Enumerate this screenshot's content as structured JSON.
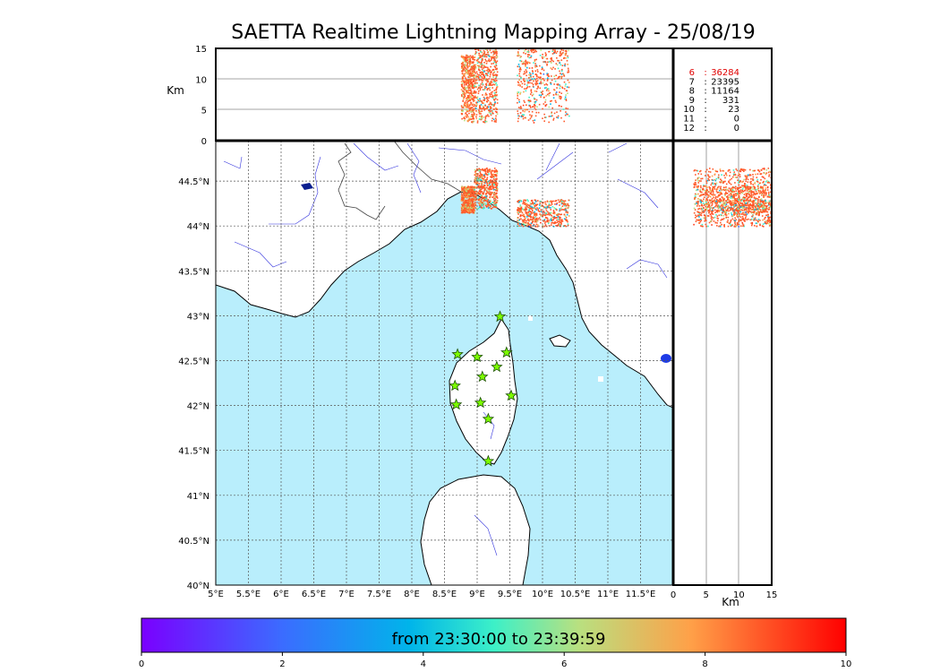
{
  "title": "SAETTA Realtime Lightning Mapping Array - 25/08/19",
  "altitude_axis_label": "Km",
  "altitude_ticks": [
    "0",
    "5",
    "10",
    "15"
  ],
  "bottom_km_label": "Km",
  "bottom_km_ticks": [
    "0",
    "5",
    "10",
    "15"
  ],
  "lon_ticks": [
    "5°E",
    "5.5°E",
    "6°E",
    "6.5°E",
    "7°E",
    "7.5°E",
    "8°E",
    "8.5°E",
    "9°E",
    "9.5°E",
    "10°E",
    "10.5°E",
    "11°E",
    "11.5°E"
  ],
  "lat_ticks": [
    "40°N",
    "40.5°N",
    "41°N",
    "41.5°N",
    "42°N",
    "42.5°N",
    "43°N",
    "43.5°N",
    "44°N",
    "44.5°N"
  ],
  "station_counts": [
    {
      "n": "6",
      "count": "36284",
      "highlight": true
    },
    {
      "n": "7",
      "count": "23395",
      "highlight": false
    },
    {
      "n": "8",
      "count": "11164",
      "highlight": false
    },
    {
      "n": "9",
      "count": "331",
      "highlight": false
    },
    {
      "n": "10",
      "count": "23",
      "highlight": false
    },
    {
      "n": "11",
      "count": "0",
      "highlight": false
    },
    {
      "n": "12",
      "count": "0",
      "highlight": false
    }
  ],
  "colorbar": {
    "caption": "from 23:30:00 to 23:39:59",
    "ticks": [
      "0",
      "2",
      "4",
      "6",
      "8",
      "10"
    ]
  },
  "colors": {
    "sea": "#b9eefc",
    "land": "#ffffff",
    "rivers": "#3333dd",
    "stations": "#7cfc00",
    "highlight": "#e00000"
  },
  "chart_data": {
    "type": "scatter",
    "title": "SAETTA Realtime Lightning Mapping Array - 25/08/19",
    "xlim": [
      5,
      12
    ],
    "ylim": [
      40,
      44.95
    ],
    "altitude_km_range": [
      0,
      15
    ],
    "color_scale": {
      "min": 0,
      "max": 10,
      "caption": "from 23:30:00 to 23:39:59"
    },
    "stations": [
      {
        "lon": 9.35,
        "lat": 42.99
      },
      {
        "lon": 8.7,
        "lat": 42.57
      },
      {
        "lon": 9.0,
        "lat": 42.54
      },
      {
        "lon": 9.45,
        "lat": 42.59
      },
      {
        "lon": 9.3,
        "lat": 42.43
      },
      {
        "lon": 9.08,
        "lat": 42.32
      },
      {
        "lon": 8.66,
        "lat": 42.22
      },
      {
        "lon": 9.52,
        "lat": 42.11
      },
      {
        "lon": 8.68,
        "lat": 42.01
      },
      {
        "lon": 9.05,
        "lat": 42.03
      },
      {
        "lon": 9.17,
        "lat": 41.85
      },
      {
        "lon": 9.17,
        "lat": 41.38
      }
    ],
    "lightning_clusters": [
      {
        "lon": [
          8.75,
          8.95
        ],
        "lat": [
          44.15,
          44.45
        ],
        "alt_km": [
          3,
          14
        ],
        "time": [
          5,
          9
        ]
      },
      {
        "lon": [
          8.95,
          9.3
        ],
        "lat": [
          44.2,
          44.65
        ],
        "alt_km": [
          3,
          15
        ],
        "time": [
          3,
          10
        ]
      },
      {
        "lon": [
          9.6,
          10.4
        ],
        "lat": [
          44.0,
          44.3
        ],
        "alt_km": [
          3,
          15
        ],
        "time": [
          2,
          10
        ]
      }
    ],
    "event_counts_by_stations": {
      "6": 36284,
      "7": 23395,
      "8": 11164,
      "9": 331,
      "10": 23,
      "11": 0,
      "12": 0
    }
  }
}
